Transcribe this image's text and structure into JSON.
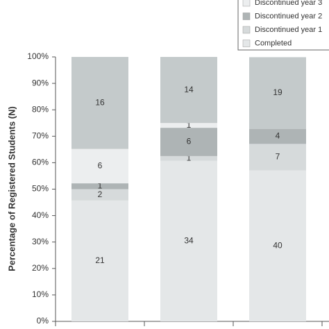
{
  "chart_data": {
    "type": "stacked_bar",
    "y_label": "Percentage of Registered Students (N)",
    "categories": [
      null,
      null,
      null
    ],
    "series": [
      {
        "name": "Completed",
        "color": "#e4e7e8",
        "values": [
          45.7,
          60.7,
          57.1
        ],
        "counts": [
          21,
          34,
          40
        ]
      },
      {
        "name": "Discontinued year 1",
        "color": "#d6dadb",
        "values": [
          4.3,
          1.8,
          10.0
        ],
        "counts": [
          2,
          1,
          7
        ]
      },
      {
        "name": "Discontinued year 2",
        "color": "#aeb4b5",
        "values": [
          2.2,
          10.7,
          5.7
        ],
        "counts": [
          1,
          6,
          4
        ]
      },
      {
        "name": "Discontinued year 3",
        "color": "#eceeef",
        "values": [
          13.0,
          1.8,
          0
        ],
        "counts": [
          6,
          1,
          null
        ]
      },
      {
        "color": "#c4cacb",
        "values": [
          34.8,
          25.0,
          27.1
        ],
        "counts": [
          16,
          14,
          19
        ]
      }
    ],
    "ylim": [
      0,
      100
    ],
    "yticks": [
      {
        "value": 0,
        "label": "0%"
      },
      {
        "value": 10,
        "label": "10%"
      },
      {
        "value": 20,
        "label": "20%"
      },
      {
        "value": 30,
        "label": "30%"
      },
      {
        "value": 40,
        "label": "40%"
      },
      {
        "value": 50,
        "label": "50%"
      },
      {
        "value": 60,
        "label": "60%"
      },
      {
        "value": 70,
        "label": "70%"
      },
      {
        "value": 80,
        "label": "80%"
      },
      {
        "value": 90,
        "label": "90%"
      },
      {
        "value": 100,
        "label": "100%"
      }
    ]
  }
}
